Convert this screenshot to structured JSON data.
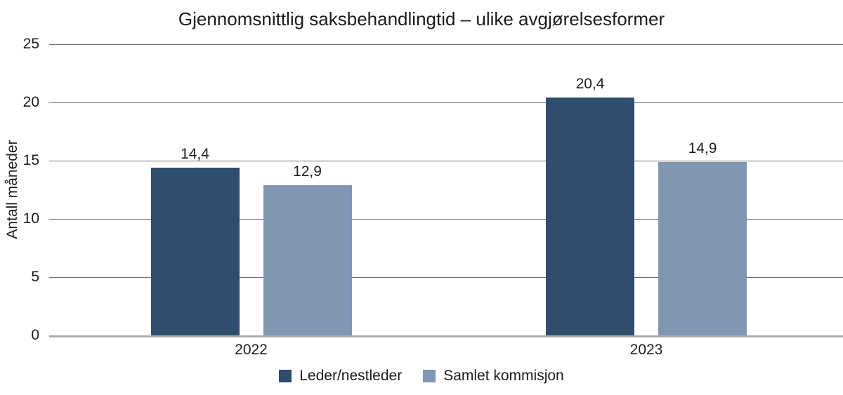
{
  "chart_data": {
    "type": "bar",
    "title": "Gjennomsnittlig saksbehandlingtid – ulike avgjørelsesformer",
    "ylabel": "Antall måneder",
    "xlabel": "",
    "categories": [
      "2022",
      "2023"
    ],
    "series": [
      {
        "name": "Leder/nestleder",
        "color": "#2E4D6F",
        "values": [
          14.4,
          20.4
        ],
        "value_labels": [
          "14,4",
          "20,4"
        ]
      },
      {
        "name": "Samlet kommisjon",
        "color": "#8096B2",
        "values": [
          12.9,
          14.9
        ],
        "value_labels": [
          "12,9",
          "14,9"
        ]
      }
    ],
    "ylim": [
      0,
      25
    ],
    "yticks": [
      0,
      5,
      10,
      15,
      20,
      25
    ],
    "ytick_labels": [
      "0",
      "5",
      "10",
      "15",
      "20",
      "25"
    ],
    "grid": "horizontal",
    "legend_position": "bottom"
  },
  "colors": {
    "gridline": "#6E6E6E",
    "axis_line": "#ABABAB",
    "text": "#1C1C1C",
    "background": "#FFFFFF"
  }
}
